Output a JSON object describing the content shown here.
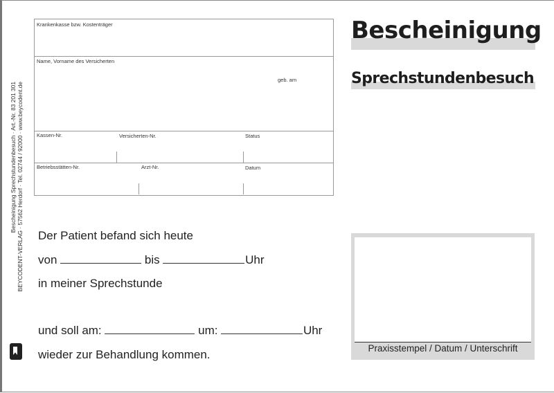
{
  "sidebar": {
    "line1": "Bescheinigung Sprechstundenbesuch · Art.-Nr. 83 201 301",
    "line2": "BEYCODENT-VERLAG · 57562 Herdorf · Tel. 02744 / 92000 · www.beycodent.de",
    "logo": "B"
  },
  "form": {
    "krankenkasse": "Krankenkasse bzw. Kostenträger",
    "name": "Name, Vorname des Versicherten",
    "geb": "geb. am",
    "kassen_nr": "Kassen-Nr.",
    "versicherten_nr": "Versicherten-Nr.",
    "status": "Status",
    "betriebsstaetten_nr": "Betriebsstätten-Nr.",
    "arzt_nr": "Arzt-Nr.",
    "datum": "Datum"
  },
  "header": {
    "title": "Bescheinigung",
    "subtitle": "Sprechstundenbesuch"
  },
  "body": {
    "line1": "Der Patient befand sich heute",
    "von": "von",
    "bis": "bis",
    "uhr": "Uhr",
    "line3": "in meiner Sprechstunde",
    "soll_am": "und soll am:",
    "um": "um:",
    "line5": "wieder zur Behandlung kommen."
  },
  "stamp": {
    "caption": "Praxisstempel / Datum / Unterschrift"
  },
  "colors": {
    "bar": "#d9d9d9",
    "border": "#999999"
  }
}
